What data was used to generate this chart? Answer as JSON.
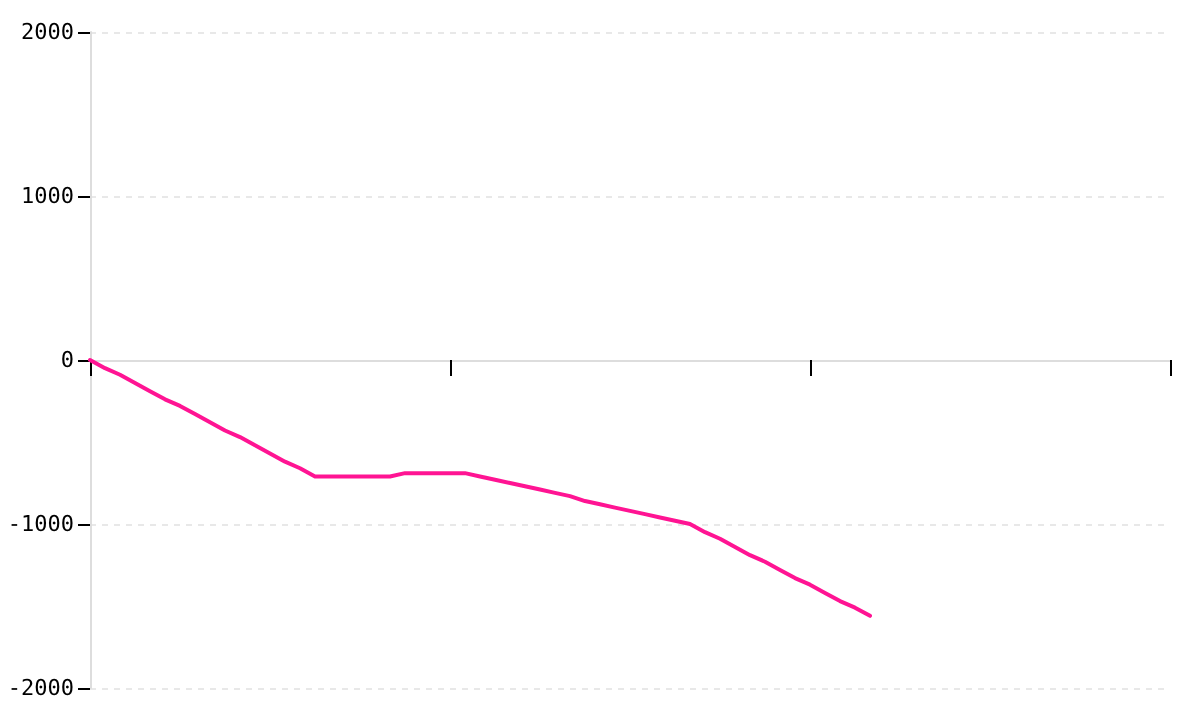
{
  "chart_data": {
    "type": "line",
    "categories": [
      null,
      null,
      null,
      null,
      null,
      null,
      null,
      null,
      null,
      null,
      null,
      null,
      null,
      null,
      null,
      null,
      null,
      null,
      null,
      null,
      null,
      null,
      null,
      null,
      null,
      null,
      null,
      null,
      null,
      null,
      null,
      null,
      null,
      null,
      null,
      null,
      null,
      null,
      null,
      null,
      null,
      null,
      null,
      null,
      null,
      null,
      null,
      null,
      null,
      null,
      null,
      null,
      null,
      null,
      null,
      null,
      null,
      null,
      null,
      null,
      null,
      null,
      null,
      null,
      null,
      null,
      null,
      null,
      null,
      null,
      null,
      null,
      null
    ],
    "series": [
      {
        "color": "#ff1493",
        "values": [
          0,
          -50,
          -90,
          -140,
          -190,
          -240,
          -280,
          -330,
          -380,
          -430,
          -470,
          -520,
          -570,
          -620,
          -660,
          -710,
          -710,
          -710,
          -710,
          -710,
          -710,
          -690,
          -690,
          -690,
          -690,
          -690,
          -710,
          -730,
          -750,
          -770,
          -790,
          -810,
          -830,
          -860,
          -880,
          -900,
          -920,
          -940,
          -960,
          -980,
          -1000,
          -1050,
          -1090,
          -1140,
          -1190,
          -1230,
          -1280,
          -1330,
          -1370,
          -1420,
          -1470,
          -1510,
          -1560,
          null,
          null,
          null,
          null,
          null,
          null,
          null,
          null,
          null,
          null,
          null,
          null,
          null,
          null,
          null,
          null,
          null,
          null,
          null,
          null
        ]
      }
    ],
    "ylim": [
      -2000,
      2000
    ],
    "yticks": [
      -2000,
      -1000,
      0,
      1000,
      2000
    ],
    "grid": "y",
    "marker": "none",
    "line_style": "solid"
  }
}
